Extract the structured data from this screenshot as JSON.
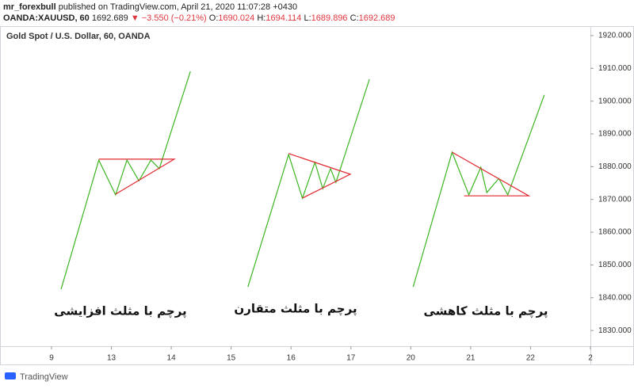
{
  "header": {
    "author": "mr_forexbull",
    "published": " published on TradingView.com, April 21, 2020 11:07:28 +0430",
    "symbol": "OANDA:XAUUSD, 60",
    "price": "1692.689",
    "change": "▼ −3.550 (−0.21%)",
    "open_label": "O:",
    "open": "1690.024",
    "high_label": "H:",
    "high": "1694.114",
    "low_label": "L:",
    "low": "1689.896",
    "close_label": "C:",
    "close": "1692.689"
  },
  "footer": "TradingView",
  "chart_data": {
    "type": "line",
    "title": "Gold Spot / U.S. Dollar, 60, OANDA",
    "xlim": [
      -0.86,
      9.0
    ],
    "ylim": [
      1825.2,
      1922.4
    ],
    "xticks": [
      {
        "value": 0,
        "label": "9"
      },
      {
        "value": 1,
        "label": "13"
      },
      {
        "value": 2,
        "label": "14"
      },
      {
        "value": 3,
        "label": "15"
      },
      {
        "value": 4,
        "label": "16"
      },
      {
        "value": 5,
        "label": "17"
      },
      {
        "value": 6,
        "label": "20"
      },
      {
        "value": 7,
        "label": "21"
      },
      {
        "value": 8,
        "label": "22"
      },
      {
        "value": 9,
        "label": "2"
      }
    ],
    "yticks": [
      {
        "value": 1830,
        "label": "1830.000"
      },
      {
        "value": 1840,
        "label": "1840.000"
      },
      {
        "value": 1850,
        "label": "1850.000"
      },
      {
        "value": 1860,
        "label": "1860.000"
      },
      {
        "value": 1870,
        "label": "1870.000"
      },
      {
        "value": 1880,
        "label": "1880.000"
      },
      {
        "value": 1890,
        "label": "1890.000"
      },
      {
        "value": 1900,
        "label": "1900.000"
      },
      {
        "value": 1910,
        "label": "1910.000"
      },
      {
        "value": 1920,
        "label": "1920.000"
      }
    ],
    "series": [
      {
        "color": "#3cb521",
        "x": [
          0.16,
          0.79,
          1.07,
          1.26,
          1.46,
          1.66,
          1.8,
          2.32
        ],
        "values": [
          1842.6,
          1882.0,
          1871.4,
          1882.0,
          1875.7,
          1882.0,
          1879.4,
          1909.1
        ]
      },
      {
        "color": "#e0262e",
        "x": [
          0.79,
          2.05,
          1.07
        ],
        "values": [
          1882.3,
          1882.3,
          1871.6
        ]
      },
      {
        "color": "#3cb521",
        "x": [
          3.28,
          3.96,
          4.19,
          4.4,
          4.53,
          4.66,
          4.75,
          5.31
        ],
        "values": [
          1843.3,
          1883.7,
          1870.4,
          1881.3,
          1873.3,
          1879.4,
          1875.2,
          1906.7
        ]
      },
      {
        "color": "#e0262e",
        "x": [
          3.96,
          4.99,
          4.19
        ],
        "values": [
          1884.0,
          1877.7,
          1870.4
        ]
      },
      {
        "color": "#3cb521",
        "x": [
          6.04,
          6.69,
          6.97,
          7.17,
          7.27,
          7.47,
          7.62,
          8.23
        ],
        "values": [
          1843.3,
          1884.4,
          1871.4,
          1879.8,
          1872.1,
          1876.4,
          1871.4,
          1901.9
        ]
      },
      {
        "color": "#e0262e",
        "x": [
          6.69,
          7.97,
          6.89
        ],
        "values": [
          1884.4,
          1871.1,
          1871.1
        ]
      }
    ],
    "annotations": [
      "پرچم با مثلث افزایشی",
      "پرچم با مثلث متقارن",
      "پرچم با مثلث کاهشی"
    ]
  }
}
